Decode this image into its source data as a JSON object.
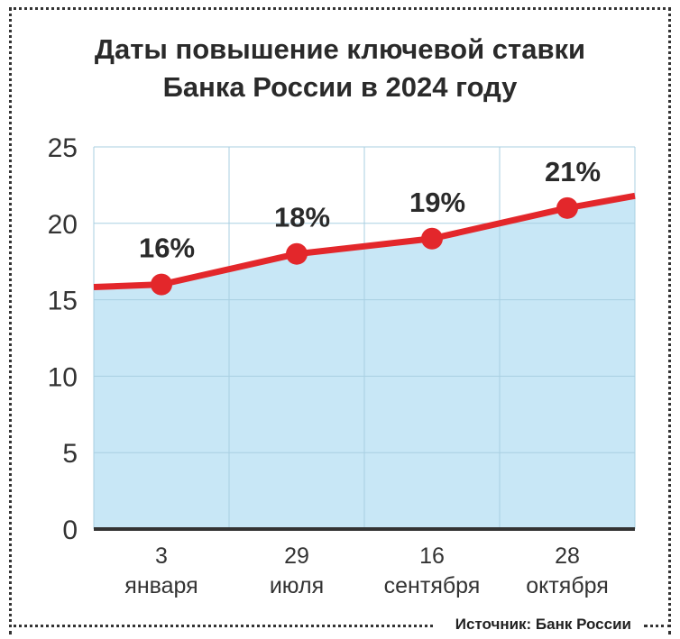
{
  "title_line1": "Даты повышение ключевой ставки",
  "title_line2": "Банка России в 2024 году",
  "source": "Источник: Банк России",
  "colors": {
    "line": "#e3272b",
    "area": "#c8e7f6",
    "grid": "#a9cfe2",
    "axis": "#333333"
  },
  "chart_data": {
    "type": "line",
    "title": "Даты повышение ключевой ставки Банка России в 2024 году",
    "ylim": [
      0,
      25
    ],
    "yticks": [
      "0",
      "5",
      "10",
      "15",
      "20",
      "25"
    ],
    "categories": [
      {
        "line1": "3",
        "line2": "января"
      },
      {
        "line1": "29",
        "line2": "июля"
      },
      {
        "line1": "16",
        "line2": "сентября"
      },
      {
        "line1": "28",
        "line2": "октября"
      }
    ],
    "series": [
      {
        "values": [
          16,
          18,
          19,
          21
        ],
        "labels": [
          "16%",
          "18%",
          "19%",
          "21%"
        ]
      }
    ],
    "grid": true
  }
}
